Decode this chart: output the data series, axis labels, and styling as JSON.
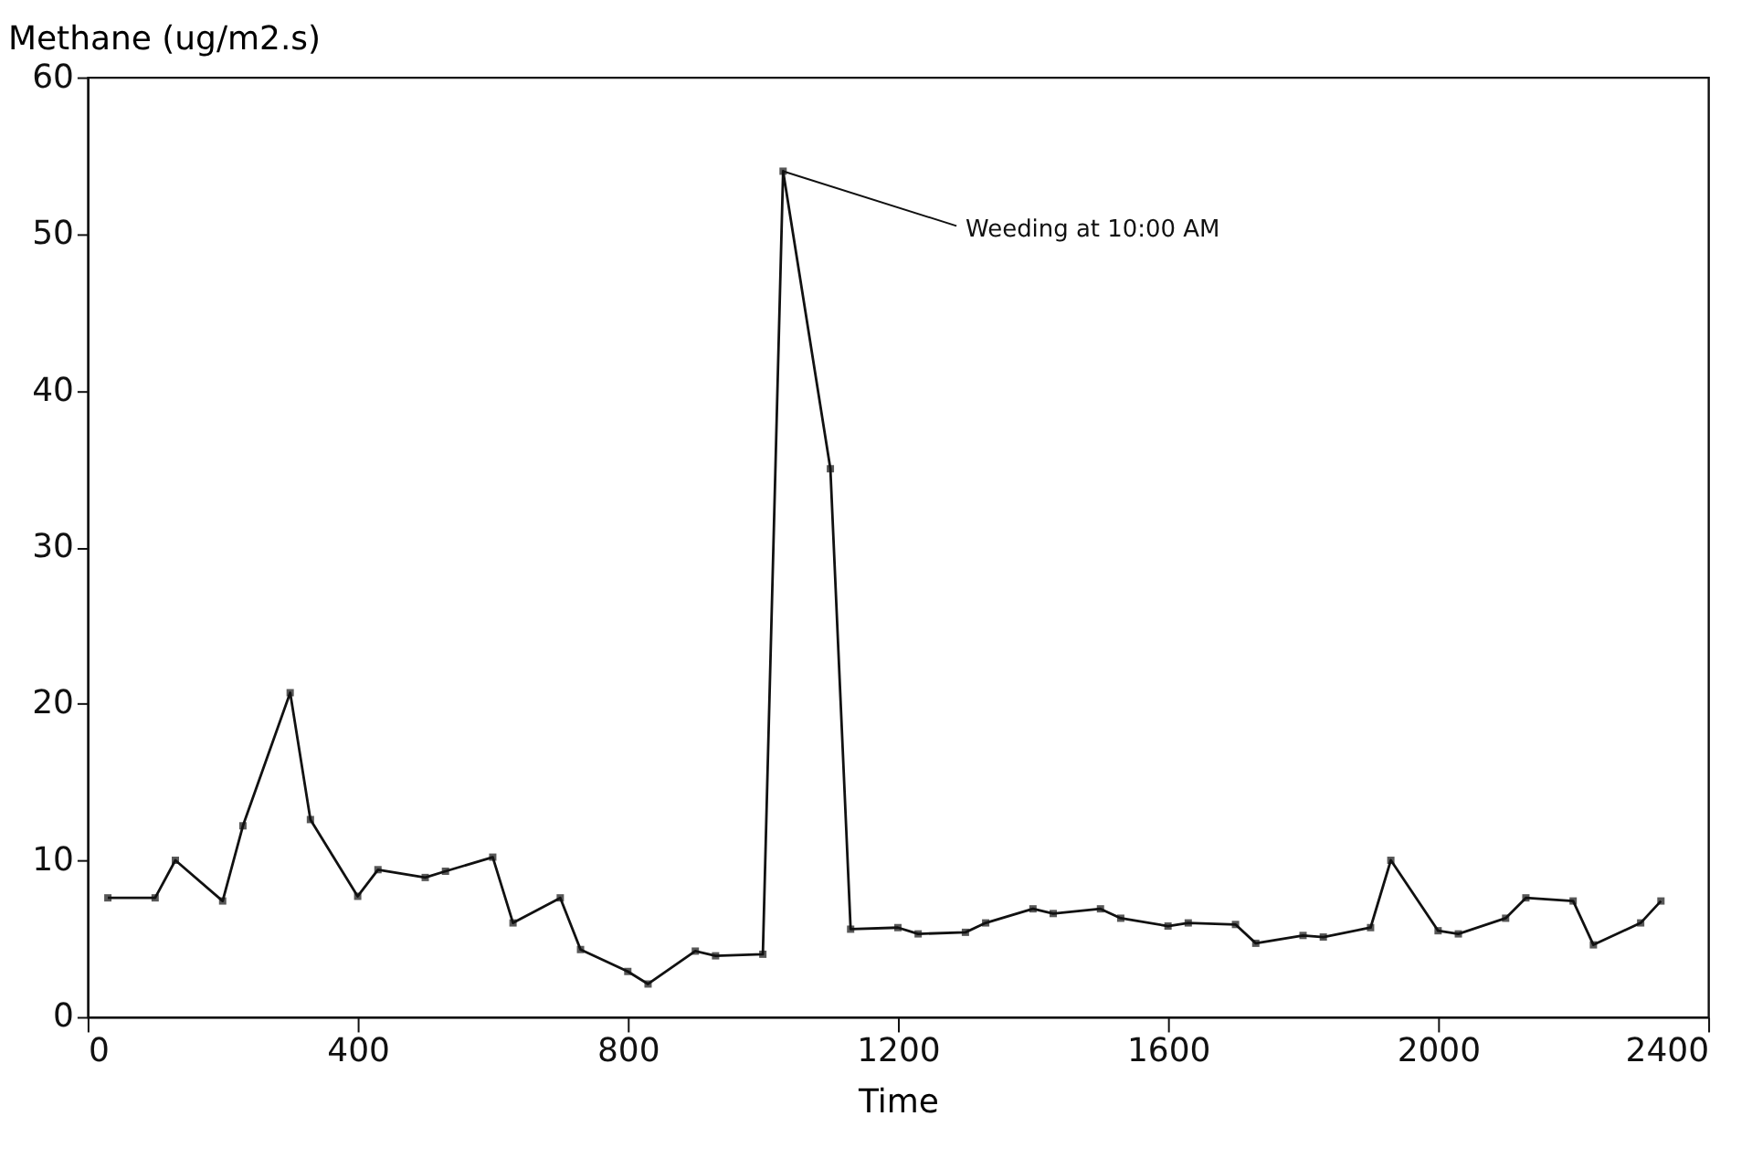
{
  "chart_data": {
    "type": "line",
    "xlabel": "Time",
    "ylabel": "Methane (ug/m2.s)",
    "x": [
      30,
      100,
      130,
      200,
      230,
      300,
      330,
      400,
      430,
      500,
      530,
      600,
      630,
      700,
      730,
      800,
      830,
      900,
      930,
      1000,
      1030,
      1100,
      1130,
      1200,
      1230,
      1300,
      1330,
      1400,
      1430,
      1500,
      1530,
      1600,
      1630,
      1700,
      1730,
      1800,
      1830,
      1900,
      1930,
      2000,
      2030,
      2100,
      2130,
      2200,
      2230,
      2300,
      2330
    ],
    "series": [
      {
        "color": "#111111",
        "values": [
          7.6,
          7.6,
          10.0,
          7.4,
          12.2,
          20.7,
          12.6,
          7.7,
          9.4,
          8.9,
          9.3,
          10.2,
          6.0,
          7.6,
          4.3,
          2.9,
          2.1,
          4.2,
          3.9,
          4.0,
          54,
          35,
          5.6,
          5.7,
          5.3,
          5.4,
          6.0,
          6.9,
          6.6,
          6.9,
          6.3,
          5.8,
          6.0,
          5.9,
          4.7,
          5.2,
          5.1,
          5.7,
          10.0,
          5.5,
          5.3,
          6.3,
          7.6,
          7.4,
          4.6,
          6.0,
          7.4
        ]
      }
    ],
    "xlim": [
      0,
      2400
    ],
    "xticks": [
      0,
      400,
      800,
      1200,
      1600,
      2000,
      2400
    ],
    "ylim": [
      0,
      60
    ],
    "yticks": [
      0,
      10,
      20,
      30,
      40,
      50,
      60
    ],
    "marker": "square",
    "line_style": "solid",
    "grid": false,
    "annotations": [
      {
        "text": "Weeding at 10:00 AM",
        "x": 1030,
        "y": 54
      }
    ]
  }
}
